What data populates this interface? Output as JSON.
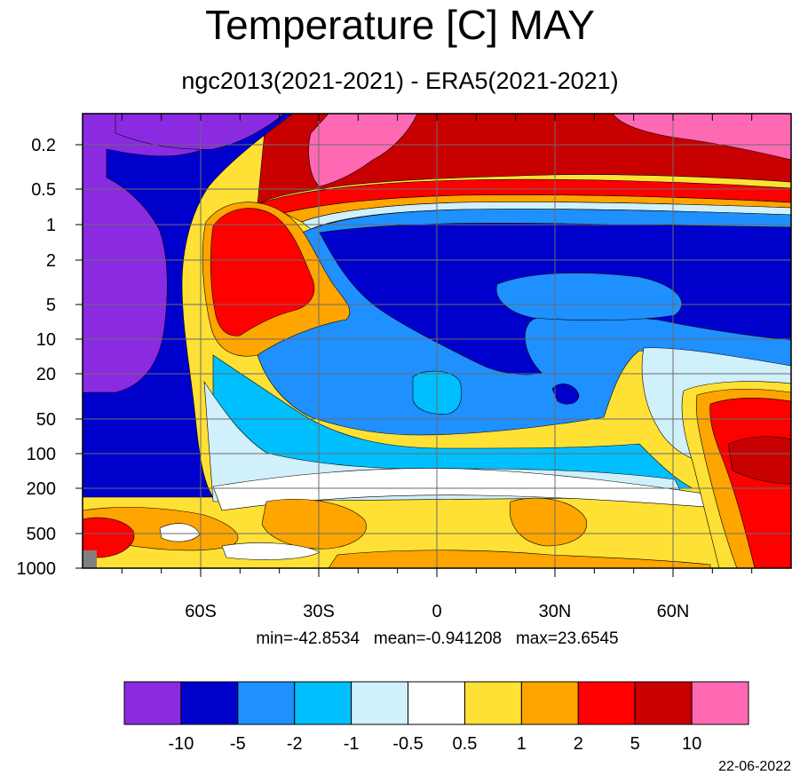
{
  "title": "Temperature [C] MAY",
  "subtitle": "ngc2013(2021-2021) - ERA5(2021-2021)",
  "stats": "min=-42.8534   mean=-0.941208   max=23.6545",
  "date": "22-06-2022",
  "chart_data": {
    "type": "heatmap",
    "title": "Temperature [C] MAY",
    "subtitle": "ngc2013(2021-2021) - ERA5(2021-2021)",
    "x_ticks": [
      {
        "value": -60,
        "label": "60S"
      },
      {
        "value": -30,
        "label": "30S"
      },
      {
        "value": 0,
        "label": "0"
      },
      {
        "value": 30,
        "label": "30N"
      },
      {
        "value": 60,
        "label": "60N"
      }
    ],
    "x_range": [
      -90,
      90
    ],
    "y_ticks": [
      {
        "value": 0.2,
        "label": "0.2"
      },
      {
        "value": 0.5,
        "label": "0.5"
      },
      {
        "value": 1,
        "label": "1"
      },
      {
        "value": 2,
        "label": "2"
      },
      {
        "value": 5,
        "label": "5"
      },
      {
        "value": 10,
        "label": "10"
      },
      {
        "value": 20,
        "label": "20"
      },
      {
        "value": 50,
        "label": "50"
      },
      {
        "value": 100,
        "label": "100"
      },
      {
        "value": 200,
        "label": "200"
      },
      {
        "value": 500,
        "label": "500"
      },
      {
        "value": 1000,
        "label": "1000"
      }
    ],
    "y_scale": "log",
    "y_reversed": true,
    "grid": true,
    "stats": {
      "min": -42.8534,
      "mean": -0.941208,
      "max": 23.6545
    },
    "colorbar": {
      "colors": [
        "#8a2be2",
        "#0000cd",
        "#1e90ff",
        "#00bfff",
        "#d0f0fb",
        "#ffffff",
        "#ffe135",
        "#ffa500",
        "#ff0000",
        "#c80000",
        "#ff69b4"
      ],
      "labels": [
        "-10",
        "-5",
        "-2",
        "-1",
        "-0.5",
        "0.5",
        "1",
        "2",
        "5",
        "10"
      ]
    }
  }
}
